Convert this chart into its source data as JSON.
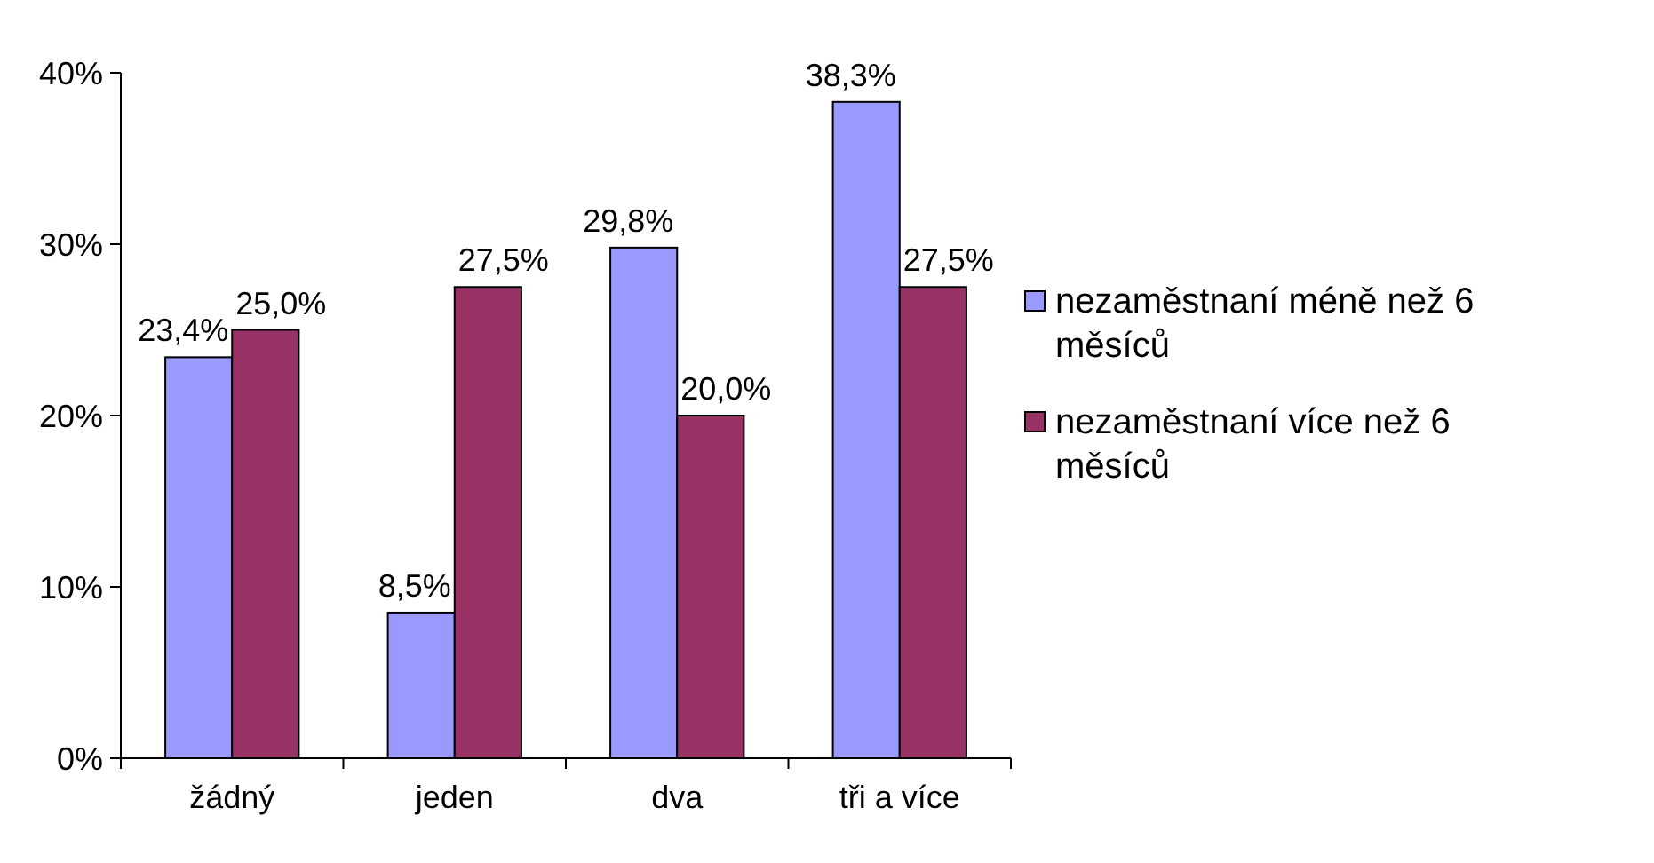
{
  "chart_data": {
    "type": "bar",
    "categories": [
      "žádný",
      "jeden",
      "dva",
      "tři a více"
    ],
    "series": [
      {
        "name": "nezaměstnaní méně než 6 měsíců",
        "color": "#9999ff",
        "values": [
          23.4,
          8.5,
          29.8,
          38.3
        ],
        "value_labels": [
          "23,4%",
          "8,5%",
          "29,8%",
          "38,3%"
        ]
      },
      {
        "name": "nezaměstnaní více než 6 měsíců",
        "color": "#993366",
        "values": [
          25.0,
          27.5,
          20.0,
          27.5
        ],
        "value_labels": [
          "25,0%",
          "27,5%",
          "20,0%",
          "27,5%"
        ]
      }
    ],
    "ylim": [
      0,
      40
    ],
    "yticks": [
      {
        "value": 0,
        "label": "0%"
      },
      {
        "value": 10,
        "label": "10%"
      },
      {
        "value": 20,
        "label": "20%"
      },
      {
        "value": 30,
        "label": "30%"
      },
      {
        "value": 40,
        "label": "40%"
      }
    ],
    "grid": false,
    "legend": "right"
  }
}
